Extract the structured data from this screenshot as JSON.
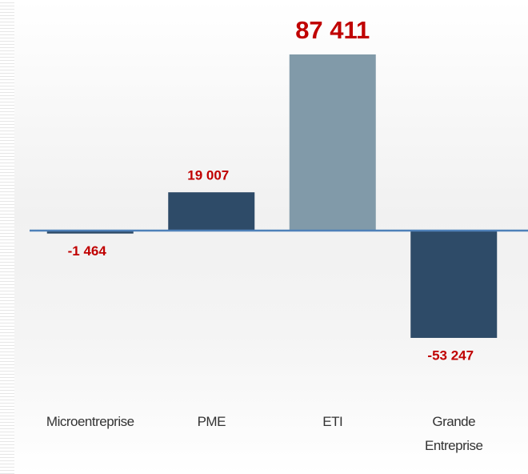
{
  "chart_data": {
    "type": "bar",
    "categories": [
      "Microentreprise",
      "PME",
      "ETI",
      "Grande Entreprise"
    ],
    "values": [
      -1464,
      19007,
      87411,
      -53247
    ],
    "value_labels": [
      "-1 464",
      "19 007",
      "87 411",
      "-53 247"
    ],
    "colors": [
      "#2e4b68",
      "#2e4b68",
      "#819aa9",
      "#2e4b68"
    ],
    "label_color": "#c00000",
    "baseline_color": "#4f81b9"
  }
}
